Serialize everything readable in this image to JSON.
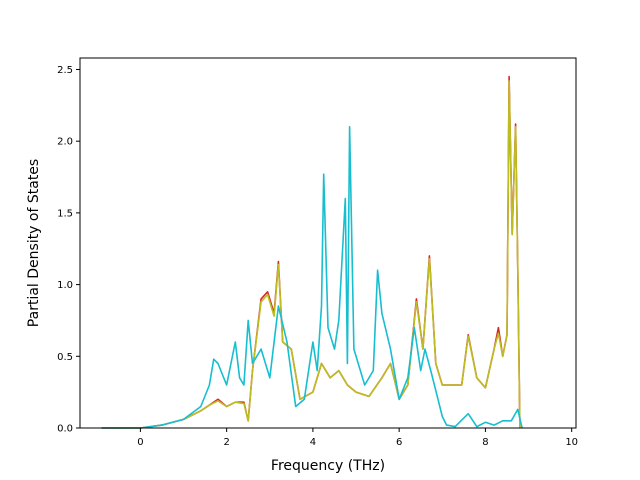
{
  "chart_data": {
    "type": "line",
    "title": "",
    "xlabel": "Frequency (THz)",
    "ylabel": "Partial Density of States",
    "xlim": [
      -1.4,
      10.1
    ],
    "ylim": [
      0,
      2.58
    ],
    "xticks": [
      0,
      2,
      4,
      6,
      8,
      10
    ],
    "yticks": [
      0.0,
      0.5,
      1.0,
      1.5,
      2.0,
      2.5
    ],
    "xtick_labels": [
      "0",
      "2",
      "4",
      "6",
      "8",
      "10"
    ],
    "ytick_labels": [
      "0.0",
      "0.5",
      "1.0",
      "1.5",
      "2.0",
      "2.5"
    ],
    "grid": false,
    "legend": "none",
    "series": [
      {
        "color": "#d62728",
        "x": [
          -0.9,
          0,
          0.5,
          1.0,
          1.4,
          1.6,
          1.8,
          2.0,
          2.2,
          2.4,
          2.5,
          2.6,
          2.8,
          2.95,
          3.1,
          3.2,
          3.3,
          3.5,
          3.7,
          4.0,
          4.2,
          4.4,
          4.6,
          4.8,
          5.0,
          5.3,
          5.6,
          5.8,
          6.0,
          6.2,
          6.4,
          6.55,
          6.7,
          6.85,
          7.0,
          7.2,
          7.45,
          7.6,
          7.8,
          8.0,
          8.2,
          8.3,
          8.4,
          8.5,
          8.55,
          8.62,
          8.7,
          8.75,
          8.8
        ],
        "y": [
          0,
          0,
          0.02,
          0.06,
          0.12,
          0.16,
          0.2,
          0.15,
          0.18,
          0.18,
          0.05,
          0.4,
          0.9,
          0.95,
          0.8,
          1.16,
          0.6,
          0.55,
          0.2,
          0.25,
          0.45,
          0.35,
          0.4,
          0.3,
          0.25,
          0.22,
          0.35,
          0.45,
          0.2,
          0.3,
          0.9,
          0.55,
          1.2,
          0.45,
          0.3,
          0.3,
          0.3,
          0.65,
          0.35,
          0.28,
          0.55,
          0.7,
          0.5,
          0.65,
          2.45,
          1.35,
          2.12,
          1.1,
          0
        ]
      },
      {
        "color": "#bcbd22",
        "x": [
          -0.9,
          0,
          0.5,
          1.0,
          1.4,
          1.6,
          1.8,
          2.0,
          2.2,
          2.4,
          2.5,
          2.6,
          2.8,
          2.95,
          3.1,
          3.2,
          3.3,
          3.5,
          3.7,
          4.0,
          4.2,
          4.4,
          4.6,
          4.8,
          5.0,
          5.3,
          5.6,
          5.8,
          6.0,
          6.2,
          6.4,
          6.55,
          6.7,
          6.85,
          7.0,
          7.2,
          7.45,
          7.6,
          7.8,
          8.0,
          8.2,
          8.3,
          8.4,
          8.5,
          8.55,
          8.62,
          8.7,
          8.75,
          8.8
        ],
        "y": [
          0,
          0,
          0.02,
          0.06,
          0.12,
          0.16,
          0.19,
          0.15,
          0.18,
          0.17,
          0.05,
          0.4,
          0.88,
          0.93,
          0.78,
          1.14,
          0.6,
          0.55,
          0.2,
          0.25,
          0.45,
          0.35,
          0.4,
          0.3,
          0.25,
          0.22,
          0.35,
          0.45,
          0.2,
          0.3,
          0.88,
          0.55,
          1.18,
          0.45,
          0.3,
          0.3,
          0.3,
          0.64,
          0.35,
          0.28,
          0.55,
          0.66,
          0.5,
          0.65,
          2.42,
          1.35,
          2.1,
          1.1,
          0
        ]
      },
      {
        "color": "#17becf",
        "x": [
          -0.9,
          0,
          0.5,
          1.0,
          1.4,
          1.6,
          1.7,
          1.8,
          2.0,
          2.2,
          2.3,
          2.4,
          2.5,
          2.6,
          2.8,
          3.0,
          3.2,
          3.4,
          3.6,
          3.8,
          4.0,
          4.1,
          4.2,
          4.25,
          4.35,
          4.5,
          4.6,
          4.75,
          4.8,
          4.85,
          4.95,
          5.2,
          5.4,
          5.5,
          5.6,
          5.8,
          6.0,
          6.2,
          6.35,
          6.5,
          6.6,
          6.75,
          6.9,
          7.0,
          7.1,
          7.3,
          7.6,
          7.8,
          8.0,
          8.2,
          8.4,
          8.6,
          8.75,
          8.85
        ],
        "y": [
          0,
          0,
          0.02,
          0.06,
          0.15,
          0.3,
          0.48,
          0.45,
          0.3,
          0.6,
          0.35,
          0.3,
          0.75,
          0.45,
          0.55,
          0.35,
          0.85,
          0.6,
          0.15,
          0.2,
          0.6,
          0.4,
          0.85,
          1.77,
          0.7,
          0.55,
          0.75,
          1.6,
          0.45,
          2.1,
          0.55,
          0.3,
          0.4,
          1.1,
          0.8,
          0.55,
          0.2,
          0.35,
          0.7,
          0.4,
          0.55,
          0.38,
          0.2,
          0.08,
          0.02,
          0.01,
          0.1,
          0.01,
          0.04,
          0.02,
          0.05,
          0.05,
          0.13,
          0
        ]
      }
    ]
  }
}
